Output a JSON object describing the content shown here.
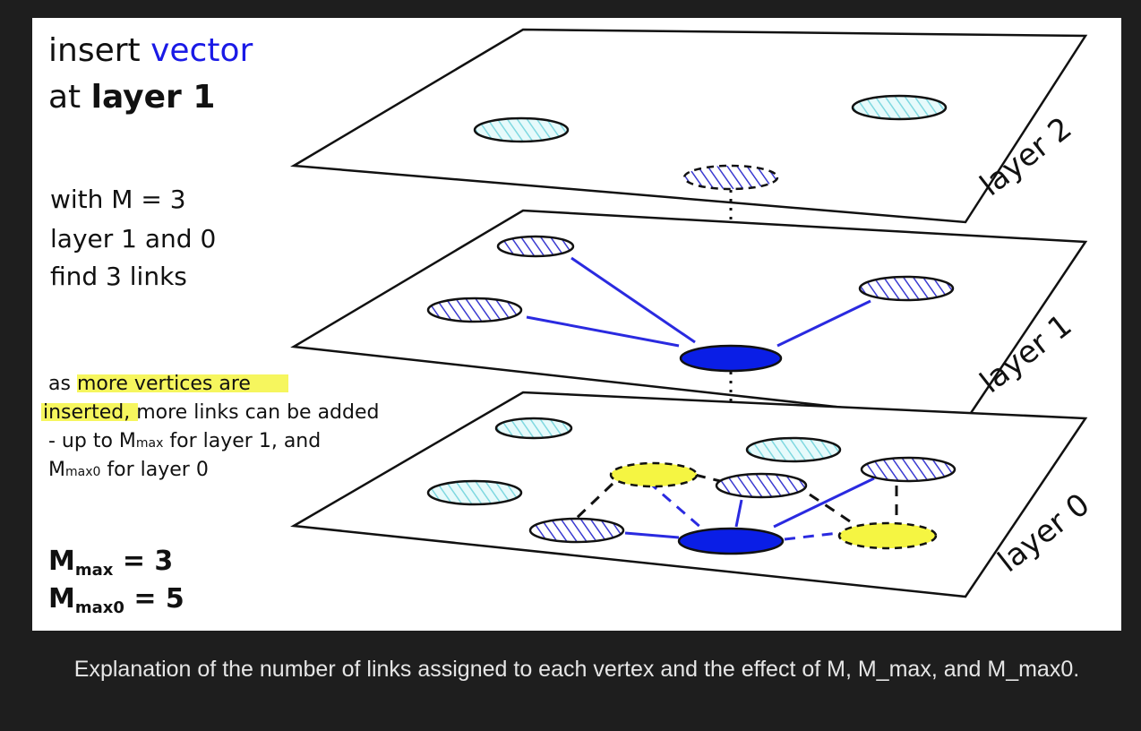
{
  "diagram": {
    "title_line1_prefix": "insert ",
    "title_line1_highlight": "vector",
    "title_line2_prefix": "at ",
    "title_line2_bold": "layer 1",
    "m_line": "with M = 3",
    "m_line2": "layer 1 and 0",
    "m_line3": "find 3 links",
    "note_prefix": "as ",
    "note_highlight1": "more vertices are",
    "note_highlight2": "inserted",
    "note_line2_rest": ", more links can be added",
    "note_line3_prefix": "- up to M",
    "note_line3_sub": "max",
    "note_line3_suffix": " for layer 1, and",
    "note_line4_prefix": "M",
    "note_line4_sub": "max0",
    "note_line4_suffix": " for layer 0",
    "mmax_main": "M",
    "mmax_sub": "max",
    "mmax_value": " = 3",
    "mmax0_main": "M",
    "mmax0_sub": "max0",
    "mmax0_value": " = 5",
    "layer2_label": "layer 2",
    "layer1_label": "layer 1",
    "layer0_label": "layer 0",
    "colors": {
      "new_vertex": "#0a1ee6",
      "link": "#2a2ae0",
      "hatched_light": "#7fd8e0",
      "hatched_dark": "#3a3ad0",
      "future_vertex": "#f5f542",
      "highlight": "#f5f542"
    }
  },
  "caption": "Explanation of the number of links assigned to each vertex and the effect of M, M_max, and M_max0."
}
